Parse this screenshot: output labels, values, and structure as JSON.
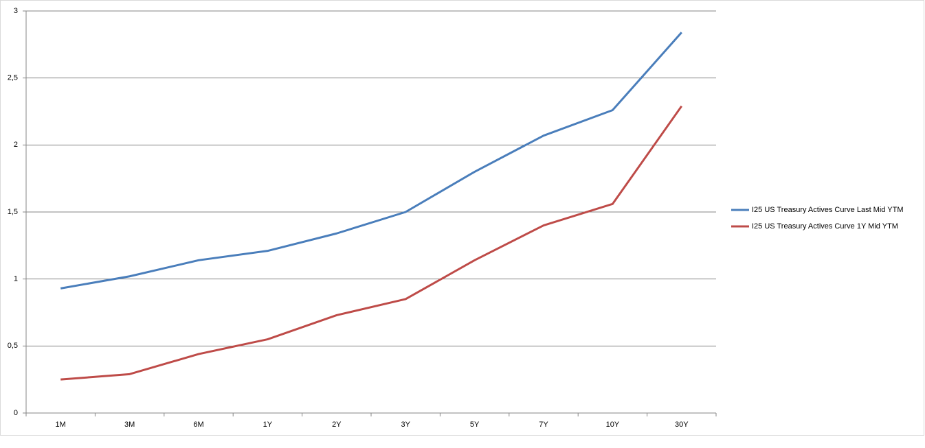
{
  "chart_data": {
    "type": "line",
    "categories": [
      "1M",
      "3M",
      "6M",
      "1Y",
      "2Y",
      "3Y",
      "5Y",
      "7Y",
      "10Y",
      "30Y"
    ],
    "series": [
      {
        "name": "I25 US Treasury Actives Curve Last Mid YTM",
        "color": "#4a7ebb",
        "values": [
          0.93,
          1.02,
          1.14,
          1.21,
          1.34,
          1.5,
          1.8,
          2.07,
          2.26,
          2.84
        ]
      },
      {
        "name": "I25 US Treasury Actives Curve 1Y Mid YTM",
        "color": "#be4b48",
        "values": [
          0.25,
          0.29,
          0.44,
          0.55,
          0.73,
          0.85,
          1.14,
          1.4,
          1.56,
          2.29
        ]
      }
    ],
    "ylim": [
      0,
      3
    ],
    "yticks": [
      0,
      {
        "value": 0.5,
        "label": "0,5"
      },
      1,
      {
        "value": 1.5,
        "label": "1,5"
      },
      2,
      {
        "value": 2.5,
        "label": "2,5"
      },
      3
    ],
    "grid": true,
    "legend": "right"
  }
}
